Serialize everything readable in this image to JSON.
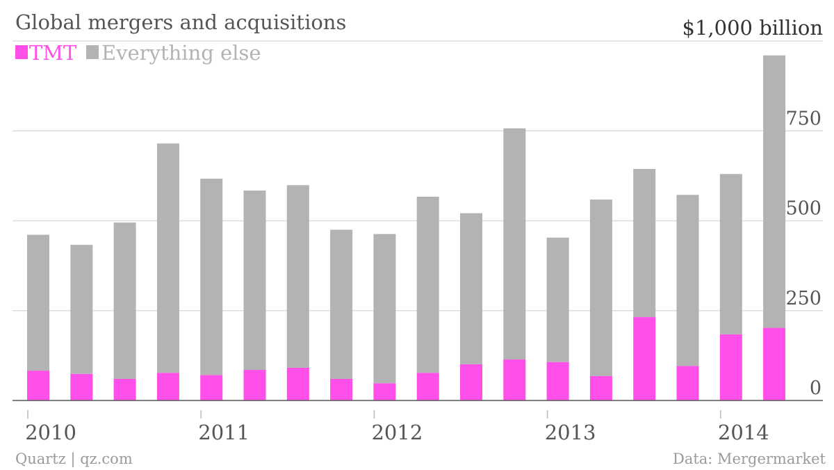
{
  "chart_data": {
    "type": "bar",
    "stacked": true,
    "title": "Global mergers and acquisitions",
    "unit_label": "$1,000 billion",
    "x_tick_labels": [
      "2010",
      "2011",
      "2012",
      "2013",
      "2014"
    ],
    "y_tick_labels": [
      "0",
      "250",
      "500",
      "750"
    ],
    "ylim": [
      0,
      1000
    ],
    "yticks": [
      0,
      250,
      500,
      750,
      1000
    ],
    "grid": true,
    "legend_position": "top-left",
    "categories": [
      "2010 Q1",
      "2010 Q2",
      "2010 Q3",
      "2010 Q4",
      "2011 Q1",
      "2011 Q2",
      "2011 Q3",
      "2011 Q4",
      "2012 Q1",
      "2012 Q2",
      "2012 Q3",
      "2012 Q4",
      "2013 Q1",
      "2013 Q2",
      "2013 Q3",
      "2013 Q4",
      "2014 Q1",
      "2014 Q2"
    ],
    "series": [
      {
        "name": "TMT",
        "color": "#ff4fe8",
        "values": [
          83,
          74,
          60,
          77,
          71,
          85,
          91,
          60,
          48,
          77,
          101,
          114,
          107,
          68,
          232,
          96,
          184,
          202
        ]
      },
      {
        "name": "Everything else",
        "color": "#b3b3b3",
        "values": [
          378,
          359,
          435,
          638,
          546,
          499,
          508,
          415,
          415,
          490,
          420,
          643,
          346,
          491,
          412,
          476,
          446,
          758
        ]
      }
    ]
  },
  "source": {
    "left": "Quartz | qz.com",
    "right": "Data: Mergermarket"
  }
}
